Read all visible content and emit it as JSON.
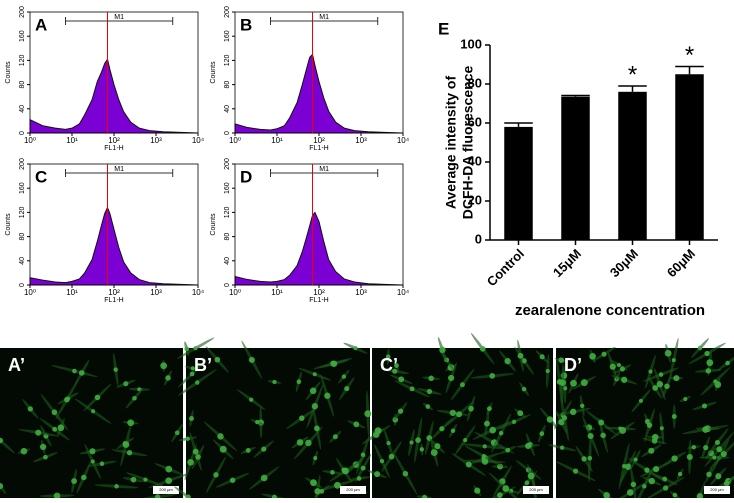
{
  "chart_data": [
    {
      "type": "histogram-curve",
      "title": "A",
      "x_label": "FL1-H",
      "y_label": "Counts",
      "log_x": true,
      "color": "#7b00d4",
      "x": [
        1,
        2,
        4,
        7,
        10,
        15,
        20,
        30,
        40,
        50,
        60,
        70,
        80,
        100,
        130,
        170,
        250,
        400,
        700,
        1500,
        10000
      ],
      "values": [
        22,
        12,
        8,
        6,
        8,
        15,
        30,
        55,
        85,
        100,
        115,
        122,
        105,
        80,
        55,
        35,
        18,
        8,
        4,
        2,
        0
      ],
      "gate": {
        "label": "M1",
        "range": [
          7,
          2500
        ]
      },
      "marker_line": 70,
      "xlim": [
        1,
        10000
      ],
      "xticks": [
        {
          "value": 1,
          "label": "10⁰"
        },
        {
          "value": 10,
          "label": "10¹"
        },
        {
          "value": 100,
          "label": "10²"
        },
        {
          "value": 1000,
          "label": "10³"
        },
        {
          "value": 10000,
          "label": "10⁴"
        }
      ],
      "ylim": [
        0,
        200
      ],
      "yticks": [
        0,
        40,
        80,
        120,
        160,
        200
      ]
    },
    {
      "type": "histogram-curve",
      "title": "B",
      "x_label": "FL1-H",
      "y_label": "Counts",
      "log_x": true,
      "color": "#7b00d4",
      "x": [
        1,
        2,
        4,
        7,
        10,
        15,
        20,
        30,
        40,
        50,
        60,
        70,
        80,
        100,
        130,
        170,
        250,
        400,
        700,
        1500,
        10000
      ],
      "values": [
        15,
        9,
        6,
        5,
        7,
        12,
        25,
        50,
        80,
        105,
        125,
        130,
        112,
        85,
        58,
        36,
        18,
        8,
        4,
        2,
        0
      ],
      "gate": {
        "label": "M1",
        "range": [
          7,
          2500
        ]
      },
      "marker_line": 70,
      "xlim": [
        1,
        10000
      ],
      "xticks": [
        {
          "value": 1,
          "label": "10⁰"
        },
        {
          "value": 10,
          "label": "10¹"
        },
        {
          "value": 100,
          "label": "10²"
        },
        {
          "value": 1000,
          "label": "10³"
        },
        {
          "value": 10000,
          "label": "10⁴"
        }
      ],
      "ylim": [
        0,
        200
      ],
      "yticks": [
        0,
        40,
        80,
        120,
        160,
        200
      ]
    },
    {
      "type": "histogram-curve",
      "title": "C",
      "x_label": "FL1-H",
      "y_label": "Counts",
      "log_x": true,
      "color": "#7b00d4",
      "x": [
        1,
        2,
        4,
        7,
        10,
        15,
        20,
        30,
        40,
        50,
        60,
        70,
        80,
        100,
        130,
        170,
        250,
        400,
        700,
        1500,
        10000
      ],
      "values": [
        12,
        8,
        5,
        4,
        6,
        10,
        20,
        42,
        72,
        98,
        118,
        128,
        118,
        92,
        62,
        38,
        20,
        9,
        4,
        2,
        0
      ],
      "gate": {
        "label": "M1",
        "range": [
          7,
          2500
        ]
      },
      "marker_line": 70,
      "xlim": [
        1,
        10000
      ],
      "xticks": [
        {
          "value": 1,
          "label": "10⁰"
        },
        {
          "value": 10,
          "label": "10¹"
        },
        {
          "value": 100,
          "label": "10²"
        },
        {
          "value": 1000,
          "label": "10³"
        },
        {
          "value": 10000,
          "label": "10⁴"
        }
      ],
      "ylim": [
        0,
        200
      ],
      "yticks": [
        0,
        40,
        80,
        120,
        160,
        200
      ]
    },
    {
      "type": "histogram-curve",
      "title": "D",
      "x_label": "FL1-H",
      "y_label": "Counts",
      "log_x": true,
      "color": "#7b00d4",
      "x": [
        1,
        2,
        4,
        7,
        10,
        15,
        20,
        30,
        40,
        50,
        60,
        70,
        80,
        100,
        130,
        170,
        250,
        400,
        700,
        1500,
        10000
      ],
      "values": [
        14,
        9,
        6,
        5,
        6,
        9,
        16,
        32,
        55,
        78,
        98,
        115,
        120,
        105,
        72,
        42,
        22,
        10,
        5,
        2,
        0
      ],
      "gate": {
        "label": "M1",
        "range": [
          7,
          2500
        ]
      },
      "marker_line": 70,
      "xlim": [
        1,
        10000
      ],
      "xticks": [
        {
          "value": 1,
          "label": "10⁰"
        },
        {
          "value": 10,
          "label": "10¹"
        },
        {
          "value": 100,
          "label": "10²"
        },
        {
          "value": 1000,
          "label": "10³"
        },
        {
          "value": 10000,
          "label": "10⁴"
        }
      ],
      "ylim": [
        0,
        200
      ],
      "yticks": [
        0,
        40,
        80,
        120,
        160,
        200
      ]
    },
    {
      "type": "bar",
      "title": "E",
      "x_label": "zearalenone concentration",
      "y_label": [
        "Average intensity of",
        "DCFH-DA fluorescence"
      ],
      "categories": [
        "Control",
        "15μM",
        "30μM",
        "60μM"
      ],
      "values": [
        58,
        73.5,
        76,
        85
      ],
      "errors": [
        2,
        0.6,
        3,
        4
      ],
      "significance": [
        null,
        null,
        "*",
        "*"
      ],
      "color": "#000000",
      "ylim": [
        0,
        100
      ],
      "yticks": [
        0,
        20,
        40,
        60,
        80,
        100
      ]
    }
  ],
  "micrographs": [
    {
      "label": "A’",
      "scale_bar": "200 μm"
    },
    {
      "label": "B’",
      "scale_bar": "200 μm"
    },
    {
      "label": "C’",
      "scale_bar": "200 μm"
    },
    {
      "label": "D’",
      "scale_bar": "200 μm"
    }
  ]
}
